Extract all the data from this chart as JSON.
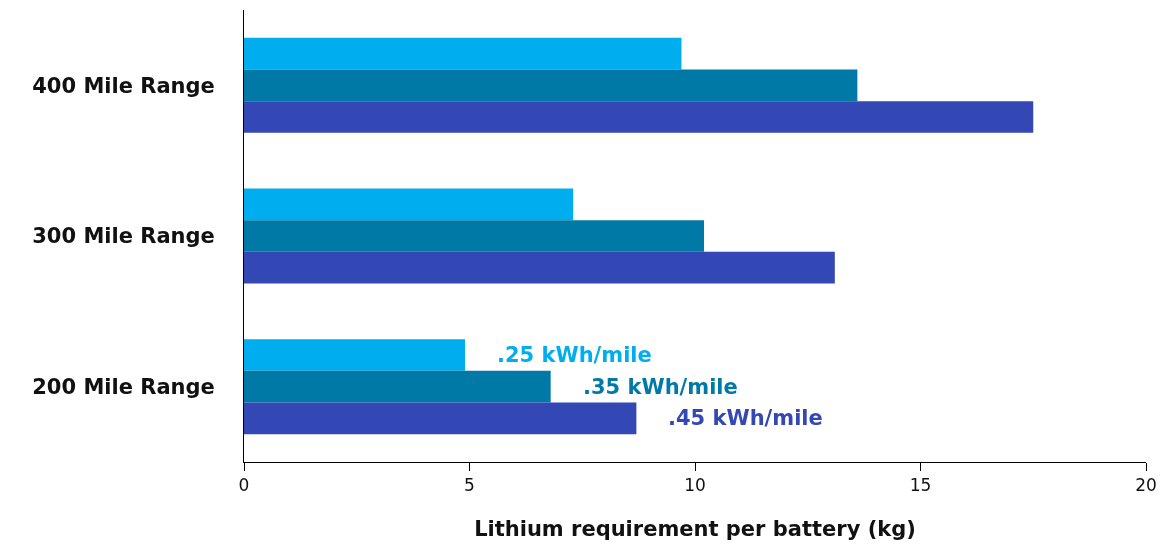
{
  "chart_data": {
    "type": "bar",
    "orientation": "horizontal",
    "xlabel": "Lithium requirement per battery (kg)",
    "categories": [
      "400 Mile Range",
      "300 Mile Range",
      "200 Mile Range"
    ],
    "series": [
      {
        "name": ".25 kWh/mile",
        "color": "#00aeef",
        "values": [
          9.7,
          7.3,
          4.9
        ]
      },
      {
        "name": ".35 kWh/mile",
        "color": "#0079a6",
        "values": [
          13.6,
          10.2,
          6.8
        ]
      },
      {
        "name": ".45 kWh/mile",
        "color": "#3347b5",
        "values": [
          17.5,
          13.1,
          8.7
        ]
      }
    ],
    "xlim": [
      0,
      20
    ],
    "xticks": [
      0,
      5,
      10,
      15,
      20
    ],
    "grid": false,
    "legend": false
  }
}
